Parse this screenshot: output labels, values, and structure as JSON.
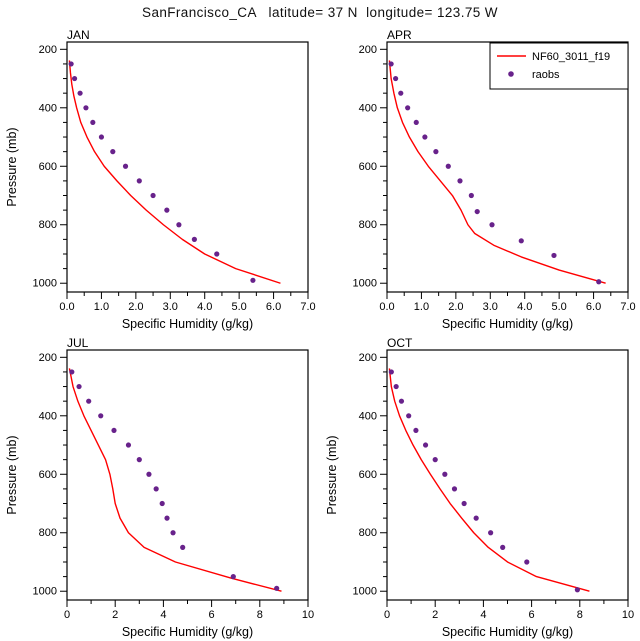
{
  "title": "SanFrancisco_CA   latitude= 37 N  longitude= 123.75 W",
  "colors": {
    "model": "#ff0000",
    "raobs": "#68228B",
    "axis": "#000000"
  },
  "legend": {
    "entries": [
      {
        "label": "NF60_3011_f19",
        "type": "line"
      },
      {
        "label": "raobs",
        "type": "dot"
      }
    ]
  },
  "axes": {
    "ylabel": "Pressure (mb)",
    "xlabel": "Specific Humidity (g/kg)",
    "y_ticks": [
      200,
      400,
      600,
      800,
      1000
    ],
    "y_minor_step": 50,
    "y_domain": [
      175,
      1030
    ]
  },
  "chart_data": [
    {
      "name": "JAN",
      "type": "line",
      "xlabel": "Specific Humidity (g/kg)",
      "ylabel": "Pressure (mb)",
      "xlim": [
        0,
        7
      ],
      "ylim": [
        200,
        1000
      ],
      "x_major_values": [
        0,
        1,
        2,
        3,
        4,
        5,
        6,
        7
      ],
      "x_tick_labels": [
        "0.0",
        "1.0",
        "2.0",
        "3.0",
        "4.0",
        "5.0",
        "6.0",
        "7.0"
      ],
      "x_minor_step": 0.5,
      "show_legend": false,
      "show_ylabel": true,
      "series": [
        {
          "name": "NF60_3011_f19",
          "style": "line",
          "points": [
            [
              0.07,
              238
            ],
            [
              0.1,
              280
            ],
            [
              0.14,
              320
            ],
            [
              0.2,
              360
            ],
            [
              0.28,
              400
            ],
            [
              0.4,
              450
            ],
            [
              0.58,
              500
            ],
            [
              0.8,
              550
            ],
            [
              1.08,
              600
            ],
            [
              1.45,
              650
            ],
            [
              1.85,
              700
            ],
            [
              2.3,
              750
            ],
            [
              2.8,
              800
            ],
            [
              3.35,
              850
            ],
            [
              4.0,
              900
            ],
            [
              4.9,
              950
            ],
            [
              6.2,
              1000
            ]
          ]
        },
        {
          "name": "raobs",
          "style": "scatter",
          "points": [
            [
              0.12,
              250
            ],
            [
              0.22,
              300
            ],
            [
              0.38,
              350
            ],
            [
              0.55,
              400
            ],
            [
              0.75,
              450
            ],
            [
              1.0,
              500
            ],
            [
              1.33,
              550
            ],
            [
              1.7,
              600
            ],
            [
              2.1,
              650
            ],
            [
              2.5,
              700
            ],
            [
              2.9,
              750
            ],
            [
              3.25,
              800
            ],
            [
              3.7,
              850
            ],
            [
              4.35,
              900
            ],
            [
              5.4,
              990
            ]
          ]
        }
      ]
    },
    {
      "name": "APR",
      "type": "line",
      "xlabel": "Specific Humidity (g/kg)",
      "ylabel": "Pressure (mb)",
      "xlim": [
        0,
        7
      ],
      "ylim": [
        200,
        1000
      ],
      "x_major_values": [
        0,
        1,
        2,
        3,
        4,
        5,
        6,
        7
      ],
      "x_tick_labels": [
        "0.0",
        "1.0",
        "2.0",
        "3.0",
        "4.0",
        "5.0",
        "6.0",
        "7.0"
      ],
      "x_minor_step": 0.5,
      "show_legend": true,
      "show_ylabel": false,
      "series": [
        {
          "name": "NF60_3011_f19",
          "style": "line",
          "points": [
            [
              0.07,
              238
            ],
            [
              0.12,
              300
            ],
            [
              0.2,
              350
            ],
            [
              0.3,
              400
            ],
            [
              0.45,
              450
            ],
            [
              0.65,
              500
            ],
            [
              0.9,
              550
            ],
            [
              1.2,
              600
            ],
            [
              1.55,
              650
            ],
            [
              1.9,
              700
            ],
            [
              2.15,
              750
            ],
            [
              2.35,
              800
            ],
            [
              2.55,
              830
            ],
            [
              3.1,
              870
            ],
            [
              3.9,
              910
            ],
            [
              5.0,
              955
            ],
            [
              6.35,
              1000
            ]
          ]
        },
        {
          "name": "raobs",
          "style": "scatter",
          "points": [
            [
              0.12,
              250
            ],
            [
              0.25,
              300
            ],
            [
              0.4,
              350
            ],
            [
              0.6,
              400
            ],
            [
              0.85,
              450
            ],
            [
              1.1,
              500
            ],
            [
              1.42,
              550
            ],
            [
              1.78,
              600
            ],
            [
              2.12,
              650
            ],
            [
              2.45,
              700
            ],
            [
              2.62,
              755
            ],
            [
              3.05,
              800
            ],
            [
              3.9,
              855
            ],
            [
              4.85,
              905
            ],
            [
              6.15,
              995
            ]
          ]
        }
      ]
    },
    {
      "name": "JUL",
      "type": "line",
      "xlabel": "Specific Humidity (g/kg)",
      "ylabel": "Pressure (mb)",
      "xlim": [
        0,
        10
      ],
      "ylim": [
        200,
        1000
      ],
      "x_major_values": [
        0,
        2,
        4,
        6,
        8,
        10
      ],
      "x_tick_labels": [
        "0",
        "2",
        "4",
        "6",
        "8",
        "10"
      ],
      "x_minor_step": 1,
      "show_legend": false,
      "show_ylabel": true,
      "series": [
        {
          "name": "NF60_3011_f19",
          "style": "line",
          "points": [
            [
              0.1,
              238
            ],
            [
              0.25,
              300
            ],
            [
              0.45,
              350
            ],
            [
              0.7,
              400
            ],
            [
              1.0,
              450
            ],
            [
              1.3,
              500
            ],
            [
              1.6,
              550
            ],
            [
              1.78,
              600
            ],
            [
              1.9,
              650
            ],
            [
              2.0,
              700
            ],
            [
              2.2,
              750
            ],
            [
              2.55,
              800
            ],
            [
              3.2,
              850
            ],
            [
              4.5,
              900
            ],
            [
              6.8,
              955
            ],
            [
              8.9,
              1000
            ]
          ]
        },
        {
          "name": "raobs",
          "style": "scatter",
          "points": [
            [
              0.2,
              250
            ],
            [
              0.5,
              300
            ],
            [
              0.9,
              350
            ],
            [
              1.4,
              400
            ],
            [
              1.95,
              450
            ],
            [
              2.55,
              500
            ],
            [
              3.0,
              550
            ],
            [
              3.4,
              600
            ],
            [
              3.7,
              650
            ],
            [
              3.95,
              700
            ],
            [
              4.15,
              750
            ],
            [
              4.4,
              800
            ],
            [
              4.8,
              850
            ],
            [
              6.9,
              950
            ],
            [
              8.7,
              990
            ]
          ]
        }
      ]
    },
    {
      "name": "OCT",
      "type": "line",
      "xlabel": "Specific Humidity (g/kg)",
      "ylabel": "Pressure (mb)",
      "xlim": [
        0,
        10
      ],
      "ylim": [
        200,
        1000
      ],
      "x_major_values": [
        0,
        2,
        4,
        6,
        8,
        10
      ],
      "x_tick_labels": [
        "0",
        "2",
        "4",
        "6",
        "8",
        "10"
      ],
      "x_minor_step": 1,
      "show_legend": false,
      "show_ylabel": true,
      "series": [
        {
          "name": "NF60_3011_f19",
          "style": "line",
          "points": [
            [
              0.1,
              238
            ],
            [
              0.18,
              300
            ],
            [
              0.32,
              350
            ],
            [
              0.52,
              400
            ],
            [
              0.78,
              450
            ],
            [
              1.08,
              500
            ],
            [
              1.42,
              550
            ],
            [
              1.8,
              600
            ],
            [
              2.2,
              650
            ],
            [
              2.62,
              700
            ],
            [
              3.1,
              750
            ],
            [
              3.6,
              800
            ],
            [
              4.2,
              850
            ],
            [
              5.0,
              900
            ],
            [
              6.2,
              950
            ],
            [
              8.4,
              1000
            ]
          ]
        },
        {
          "name": "raobs",
          "style": "scatter",
          "points": [
            [
              0.18,
              250
            ],
            [
              0.38,
              300
            ],
            [
              0.6,
              350
            ],
            [
              0.9,
              400
            ],
            [
              1.2,
              450
            ],
            [
              1.6,
              500
            ],
            [
              2.0,
              550
            ],
            [
              2.4,
              600
            ],
            [
              2.8,
              650
            ],
            [
              3.2,
              700
            ],
            [
              3.7,
              750
            ],
            [
              4.3,
              800
            ],
            [
              4.8,
              850
            ],
            [
              5.8,
              900
            ],
            [
              7.9,
              995
            ]
          ]
        }
      ]
    }
  ]
}
